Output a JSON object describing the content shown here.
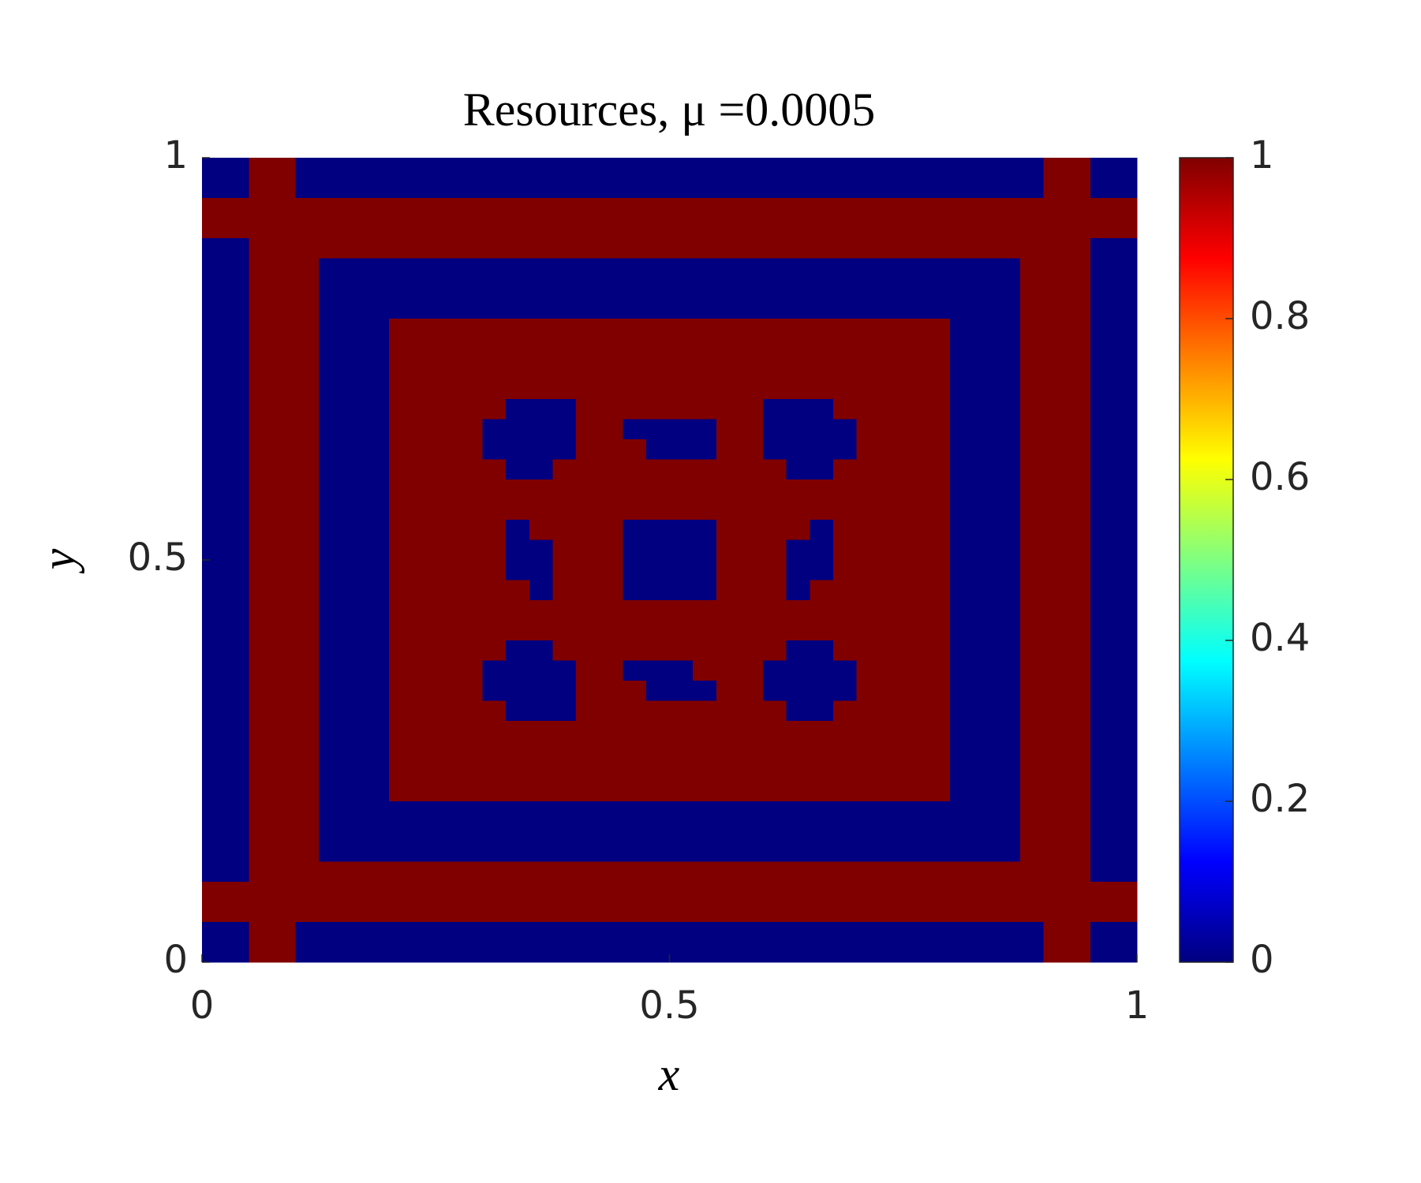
{
  "chart_data": {
    "type": "heatmap",
    "title": "Resources, μ =0.0005",
    "xlabel": "x",
    "ylabel": "y",
    "xlim": [
      0,
      1
    ],
    "ylim": [
      0,
      1
    ],
    "xticks": [
      0,
      0.5,
      1
    ],
    "yticks": [
      0,
      0.5,
      1
    ],
    "colormap": [
      "#000080",
      "#0000ff",
      "#0080ff",
      "#00ffff",
      "#80ff80",
      "#ffff00",
      "#ff8000",
      "#ff0000",
      "#800000"
    ],
    "clim": [
      0,
      1
    ],
    "cticks": [
      0,
      0.2,
      0.4,
      0.6,
      0.8,
      1
    ],
    "z": [
      [
        0,
        0,
        1,
        1,
        0,
        0,
        0,
        0,
        0,
        0,
        0,
        0,
        0,
        0,
        0,
        0,
        0,
        0,
        0,
        0,
        0,
        0,
        0,
        0,
        0,
        0,
        0,
        0,
        0,
        0,
        0,
        0,
        0,
        0,
        0,
        0,
        1,
        1,
        0,
        0
      ],
      [
        0,
        0,
        1,
        1,
        0,
        0,
        0,
        0,
        0,
        0,
        0,
        0,
        0,
        0,
        0,
        0,
        0,
        0,
        0,
        0,
        0,
        0,
        0,
        0,
        0,
        0,
        0,
        0,
        0,
        0,
        0,
        0,
        0,
        0,
        0,
        0,
        1,
        1,
        0,
        0
      ],
      [
        1,
        1,
        1,
        1,
        1,
        1,
        1,
        1,
        1,
        1,
        1,
        1,
        1,
        1,
        1,
        1,
        1,
        1,
        1,
        1,
        1,
        1,
        1,
        1,
        1,
        1,
        1,
        1,
        1,
        1,
        1,
        1,
        1,
        1,
        1,
        1,
        1,
        1,
        1,
        1
      ],
      [
        1,
        1,
        1,
        1,
        1,
        1,
        1,
        1,
        1,
        1,
        1,
        1,
        1,
        1,
        1,
        1,
        1,
        1,
        1,
        1,
        1,
        1,
        1,
        1,
        1,
        1,
        1,
        1,
        1,
        1,
        1,
        1,
        1,
        1,
        1,
        1,
        1,
        1,
        1,
        1
      ],
      [
        0,
        0,
        1,
        1,
        1,
        1,
        1,
        1,
        1,
        1,
        1,
        1,
        1,
        1,
        1,
        1,
        1,
        1,
        1,
        1,
        1,
        1,
        1,
        1,
        1,
        1,
        1,
        1,
        1,
        1,
        1,
        1,
        1,
        1,
        1,
        1,
        1,
        1,
        0,
        0
      ],
      [
        0,
        0,
        1,
        1,
        1,
        0,
        0,
        0,
        0,
        0,
        0,
        0,
        0,
        0,
        0,
        0,
        0,
        0,
        0,
        0,
        0,
        0,
        0,
        0,
        0,
        0,
        0,
        0,
        0,
        0,
        0,
        0,
        0,
        0,
        0,
        1,
        1,
        1,
        0,
        0
      ],
      [
        0,
        0,
        1,
        1,
        1,
        0,
        0,
        0,
        0,
        0,
        0,
        0,
        0,
        0,
        0,
        0,
        0,
        0,
        0,
        0,
        0,
        0,
        0,
        0,
        0,
        0,
        0,
        0,
        0,
        0,
        0,
        0,
        0,
        0,
        0,
        1,
        1,
        1,
        0,
        0
      ],
      [
        0,
        0,
        1,
        1,
        1,
        0,
        0,
        0,
        0,
        0,
        0,
        0,
        0,
        0,
        0,
        0,
        0,
        0,
        0,
        0,
        0,
        0,
        0,
        0,
        0,
        0,
        0,
        0,
        0,
        0,
        0,
        0,
        0,
        0,
        0,
        1,
        1,
        1,
        0,
        0
      ],
      [
        0,
        0,
        1,
        1,
        1,
        0,
        0,
        0,
        1,
        1,
        1,
        1,
        1,
        1,
        1,
        1,
        1,
        1,
        1,
        1,
        1,
        1,
        1,
        1,
        1,
        1,
        1,
        1,
        1,
        1,
        1,
        1,
        0,
        0,
        0,
        1,
        1,
        1,
        0,
        0
      ],
      [
        0,
        0,
        1,
        1,
        1,
        0,
        0,
        0,
        1,
        1,
        1,
        1,
        1,
        1,
        1,
        1,
        1,
        1,
        1,
        1,
        1,
        1,
        1,
        1,
        1,
        1,
        1,
        1,
        1,
        1,
        1,
        1,
        0,
        0,
        0,
        1,
        1,
        1,
        0,
        0
      ],
      [
        0,
        0,
        1,
        1,
        1,
        0,
        0,
        0,
        1,
        1,
        1,
        1,
        1,
        1,
        1,
        1,
        1,
        1,
        1,
        1,
        1,
        1,
        1,
        1,
        1,
        1,
        1,
        1,
        1,
        1,
        1,
        1,
        0,
        0,
        0,
        1,
        1,
        1,
        0,
        0
      ],
      [
        0,
        0,
        1,
        1,
        1,
        0,
        0,
        0,
        1,
        1,
        1,
        1,
        1,
        1,
        1,
        1,
        1,
        1,
        1,
        1,
        1,
        1,
        1,
        1,
        1,
        1,
        1,
        1,
        1,
        1,
        1,
        1,
        0,
        0,
        0,
        1,
        1,
        1,
        0,
        0
      ],
      [
        0,
        0,
        1,
        1,
        1,
        0,
        0,
        0,
        1,
        1,
        1,
        1,
        1,
        0,
        0,
        0,
        1,
        1,
        1,
        1,
        1,
        1,
        1,
        1,
        0,
        0,
        0,
        1,
        1,
        1,
        1,
        1,
        0,
        0,
        0,
        1,
        1,
        1,
        0,
        0
      ],
      [
        0,
        0,
        1,
        1,
        1,
        0,
        0,
        0,
        1,
        1,
        1,
        1,
        0,
        0,
        0,
        0,
        1,
        1,
        0,
        0,
        0,
        0,
        1,
        1,
        0,
        0,
        0,
        0,
        1,
        1,
        1,
        1,
        0,
        0,
        0,
        1,
        1,
        1,
        0,
        0
      ],
      [
        0,
        0,
        1,
        1,
        1,
        0,
        0,
        0,
        1,
        1,
        1,
        1,
        0,
        0,
        0,
        0,
        1,
        1,
        1,
        0,
        0,
        0,
        1,
        1,
        0,
        0,
        0,
        0,
        1,
        1,
        1,
        1,
        0,
        0,
        0,
        1,
        1,
        1,
        0,
        0
      ],
      [
        0,
        0,
        1,
        1,
        1,
        0,
        0,
        0,
        1,
        1,
        1,
        1,
        1,
        0,
        0,
        1,
        1,
        1,
        1,
        1,
        1,
        1,
        1,
        1,
        1,
        0,
        0,
        1,
        1,
        1,
        1,
        1,
        0,
        0,
        0,
        1,
        1,
        1,
        0,
        0
      ],
      [
        0,
        0,
        1,
        1,
        1,
        0,
        0,
        0,
        1,
        1,
        1,
        1,
        1,
        1,
        1,
        1,
        1,
        1,
        1,
        1,
        1,
        1,
        1,
        1,
        1,
        1,
        1,
        1,
        1,
        1,
        1,
        1,
        0,
        0,
        0,
        1,
        1,
        1,
        0,
        0
      ],
      [
        0,
        0,
        1,
        1,
        1,
        0,
        0,
        0,
        1,
        1,
        1,
        1,
        1,
        1,
        1,
        1,
        1,
        1,
        1,
        1,
        1,
        1,
        1,
        1,
        1,
        1,
        1,
        1,
        1,
        1,
        1,
        1,
        0,
        0,
        0,
        1,
        1,
        1,
        0,
        0
      ],
      [
        0,
        0,
        1,
        1,
        1,
        0,
        0,
        0,
        1,
        1,
        1,
        1,
        1,
        0,
        1,
        1,
        1,
        1,
        0,
        0,
        0,
        0,
        1,
        1,
        1,
        1,
        0,
        1,
        1,
        1,
        1,
        1,
        0,
        0,
        0,
        1,
        1,
        1,
        0,
        0
      ],
      [
        0,
        0,
        1,
        1,
        1,
        0,
        0,
        0,
        1,
        1,
        1,
        1,
        1,
        0,
        0,
        1,
        1,
        1,
        0,
        0,
        0,
        0,
        1,
        1,
        1,
        0,
        0,
        1,
        1,
        1,
        1,
        1,
        0,
        0,
        0,
        1,
        1,
        1,
        0,
        0
      ],
      [
        0,
        0,
        1,
        1,
        1,
        0,
        0,
        0,
        1,
        1,
        1,
        1,
        1,
        0,
        0,
        1,
        1,
        1,
        0,
        0,
        0,
        0,
        1,
        1,
        1,
        0,
        0,
        1,
        1,
        1,
        1,
        1,
        0,
        0,
        0,
        1,
        1,
        1,
        0,
        0
      ],
      [
        0,
        0,
        1,
        1,
        1,
        0,
        0,
        0,
        1,
        1,
        1,
        1,
        1,
        1,
        0,
        1,
        1,
        1,
        0,
        0,
        0,
        0,
        1,
        1,
        1,
        0,
        1,
        1,
        1,
        1,
        1,
        1,
        0,
        0,
        0,
        1,
        1,
        1,
        0,
        0
      ],
      [
        0,
        0,
        1,
        1,
        1,
        0,
        0,
        0,
        1,
        1,
        1,
        1,
        1,
        1,
        1,
        1,
        1,
        1,
        1,
        1,
        1,
        1,
        1,
        1,
        1,
        1,
        1,
        1,
        1,
        1,
        1,
        1,
        0,
        0,
        0,
        1,
        1,
        1,
        0,
        0
      ],
      [
        0,
        0,
        1,
        1,
        1,
        0,
        0,
        0,
        1,
        1,
        1,
        1,
        1,
        1,
        1,
        1,
        1,
        1,
        1,
        1,
        1,
        1,
        1,
        1,
        1,
        1,
        1,
        1,
        1,
        1,
        1,
        1,
        0,
        0,
        0,
        1,
        1,
        1,
        0,
        0
      ],
      [
        0,
        0,
        1,
        1,
        1,
        0,
        0,
        0,
        1,
        1,
        1,
        1,
        1,
        0,
        0,
        1,
        1,
        1,
        1,
        1,
        1,
        1,
        1,
        1,
        1,
        0,
        0,
        1,
        1,
        1,
        1,
        1,
        0,
        0,
        0,
        1,
        1,
        1,
        0,
        0
      ],
      [
        0,
        0,
        1,
        1,
        1,
        0,
        0,
        0,
        1,
        1,
        1,
        1,
        0,
        0,
        0,
        0,
        1,
        1,
        0,
        0,
        0,
        1,
        1,
        1,
        0,
        0,
        0,
        0,
        1,
        1,
        1,
        1,
        0,
        0,
        0,
        1,
        1,
        1,
        0,
        0
      ],
      [
        0,
        0,
        1,
        1,
        1,
        0,
        0,
        0,
        1,
        1,
        1,
        1,
        0,
        0,
        0,
        0,
        1,
        1,
        1,
        0,
        0,
        0,
        1,
        1,
        0,
        0,
        0,
        0,
        1,
        1,
        1,
        1,
        0,
        0,
        0,
        1,
        1,
        1,
        0,
        0
      ],
      [
        0,
        0,
        1,
        1,
        1,
        0,
        0,
        0,
        1,
        1,
        1,
        1,
        1,
        0,
        0,
        0,
        1,
        1,
        1,
        1,
        1,
        1,
        1,
        1,
        1,
        0,
        0,
        1,
        1,
        1,
        1,
        1,
        0,
        0,
        0,
        1,
        1,
        1,
        0,
        0
      ],
      [
        0,
        0,
        1,
        1,
        1,
        0,
        0,
        0,
        1,
        1,
        1,
        1,
        1,
        1,
        1,
        1,
        1,
        1,
        1,
        1,
        1,
        1,
        1,
        1,
        1,
        1,
        1,
        1,
        1,
        1,
        1,
        1,
        0,
        0,
        0,
        1,
        1,
        1,
        0,
        0
      ],
      [
        0,
        0,
        1,
        1,
        1,
        0,
        0,
        0,
        1,
        1,
        1,
        1,
        1,
        1,
        1,
        1,
        1,
        1,
        1,
        1,
        1,
        1,
        1,
        1,
        1,
        1,
        1,
        1,
        1,
        1,
        1,
        1,
        0,
        0,
        0,
        1,
        1,
        1,
        0,
        0
      ],
      [
        0,
        0,
        1,
        1,
        1,
        0,
        0,
        0,
        1,
        1,
        1,
        1,
        1,
        1,
        1,
        1,
        1,
        1,
        1,
        1,
        1,
        1,
        1,
        1,
        1,
        1,
        1,
        1,
        1,
        1,
        1,
        1,
        0,
        0,
        0,
        1,
        1,
        1,
        0,
        0
      ],
      [
        0,
        0,
        1,
        1,
        1,
        0,
        0,
        0,
        1,
        1,
        1,
        1,
        1,
        1,
        1,
        1,
        1,
        1,
        1,
        1,
        1,
        1,
        1,
        1,
        1,
        1,
        1,
        1,
        1,
        1,
        1,
        1,
        0,
        0,
        0,
        1,
        1,
        1,
        0,
        0
      ],
      [
        0,
        0,
        1,
        1,
        1,
        0,
        0,
        0,
        0,
        0,
        0,
        0,
        0,
        0,
        0,
        0,
        0,
        0,
        0,
        0,
        0,
        0,
        0,
        0,
        0,
        0,
        0,
        0,
        0,
        0,
        0,
        0,
        0,
        0,
        0,
        1,
        1,
        1,
        0,
        0
      ],
      [
        0,
        0,
        1,
        1,
        1,
        0,
        0,
        0,
        0,
        0,
        0,
        0,
        0,
        0,
        0,
        0,
        0,
        0,
        0,
        0,
        0,
        0,
        0,
        0,
        0,
        0,
        0,
        0,
        0,
        0,
        0,
        0,
        0,
        0,
        0,
        1,
        1,
        1,
        0,
        0
      ],
      [
        0,
        0,
        1,
        1,
        1,
        0,
        0,
        0,
        0,
        0,
        0,
        0,
        0,
        0,
        0,
        0,
        0,
        0,
        0,
        0,
        0,
        0,
        0,
        0,
        0,
        0,
        0,
        0,
        0,
        0,
        0,
        0,
        0,
        0,
        0,
        1,
        1,
        1,
        0,
        0
      ],
      [
        0,
        0,
        1,
        1,
        1,
        1,
        1,
        1,
        1,
        1,
        1,
        1,
        1,
        1,
        1,
        1,
        1,
        1,
        1,
        1,
        1,
        1,
        1,
        1,
        1,
        1,
        1,
        1,
        1,
        1,
        1,
        1,
        1,
        1,
        1,
        1,
        1,
        1,
        0,
        0
      ],
      [
        1,
        1,
        1,
        1,
        1,
        1,
        1,
        1,
        1,
        1,
        1,
        1,
        1,
        1,
        1,
        1,
        1,
        1,
        1,
        1,
        1,
        1,
        1,
        1,
        1,
        1,
        1,
        1,
        1,
        1,
        1,
        1,
        1,
        1,
        1,
        1,
        1,
        1,
        1,
        1
      ],
      [
        1,
        1,
        1,
        1,
        1,
        1,
        1,
        1,
        1,
        1,
        1,
        1,
        1,
        1,
        1,
        1,
        1,
        1,
        1,
        1,
        1,
        1,
        1,
        1,
        1,
        1,
        1,
        1,
        1,
        1,
        1,
        1,
        1,
        1,
        1,
        1,
        1,
        1,
        1,
        1
      ],
      [
        0,
        0,
        1,
        1,
        0,
        0,
        0,
        0,
        0,
        0,
        0,
        0,
        0,
        0,
        0,
        0,
        0,
        0,
        0,
        0,
        0,
        0,
        0,
        0,
        0,
        0,
        0,
        0,
        0,
        0,
        0,
        0,
        0,
        0,
        0,
        0,
        1,
        1,
        0,
        0
      ],
      [
        0,
        0,
        1,
        1,
        0,
        0,
        0,
        0,
        0,
        0,
        0,
        0,
        0,
        0,
        0,
        0,
        0,
        0,
        0,
        0,
        0,
        0,
        0,
        0,
        0,
        0,
        0,
        0,
        0,
        0,
        0,
        0,
        0,
        0,
        0,
        0,
        1,
        1,
        0,
        0
      ]
    ]
  }
}
